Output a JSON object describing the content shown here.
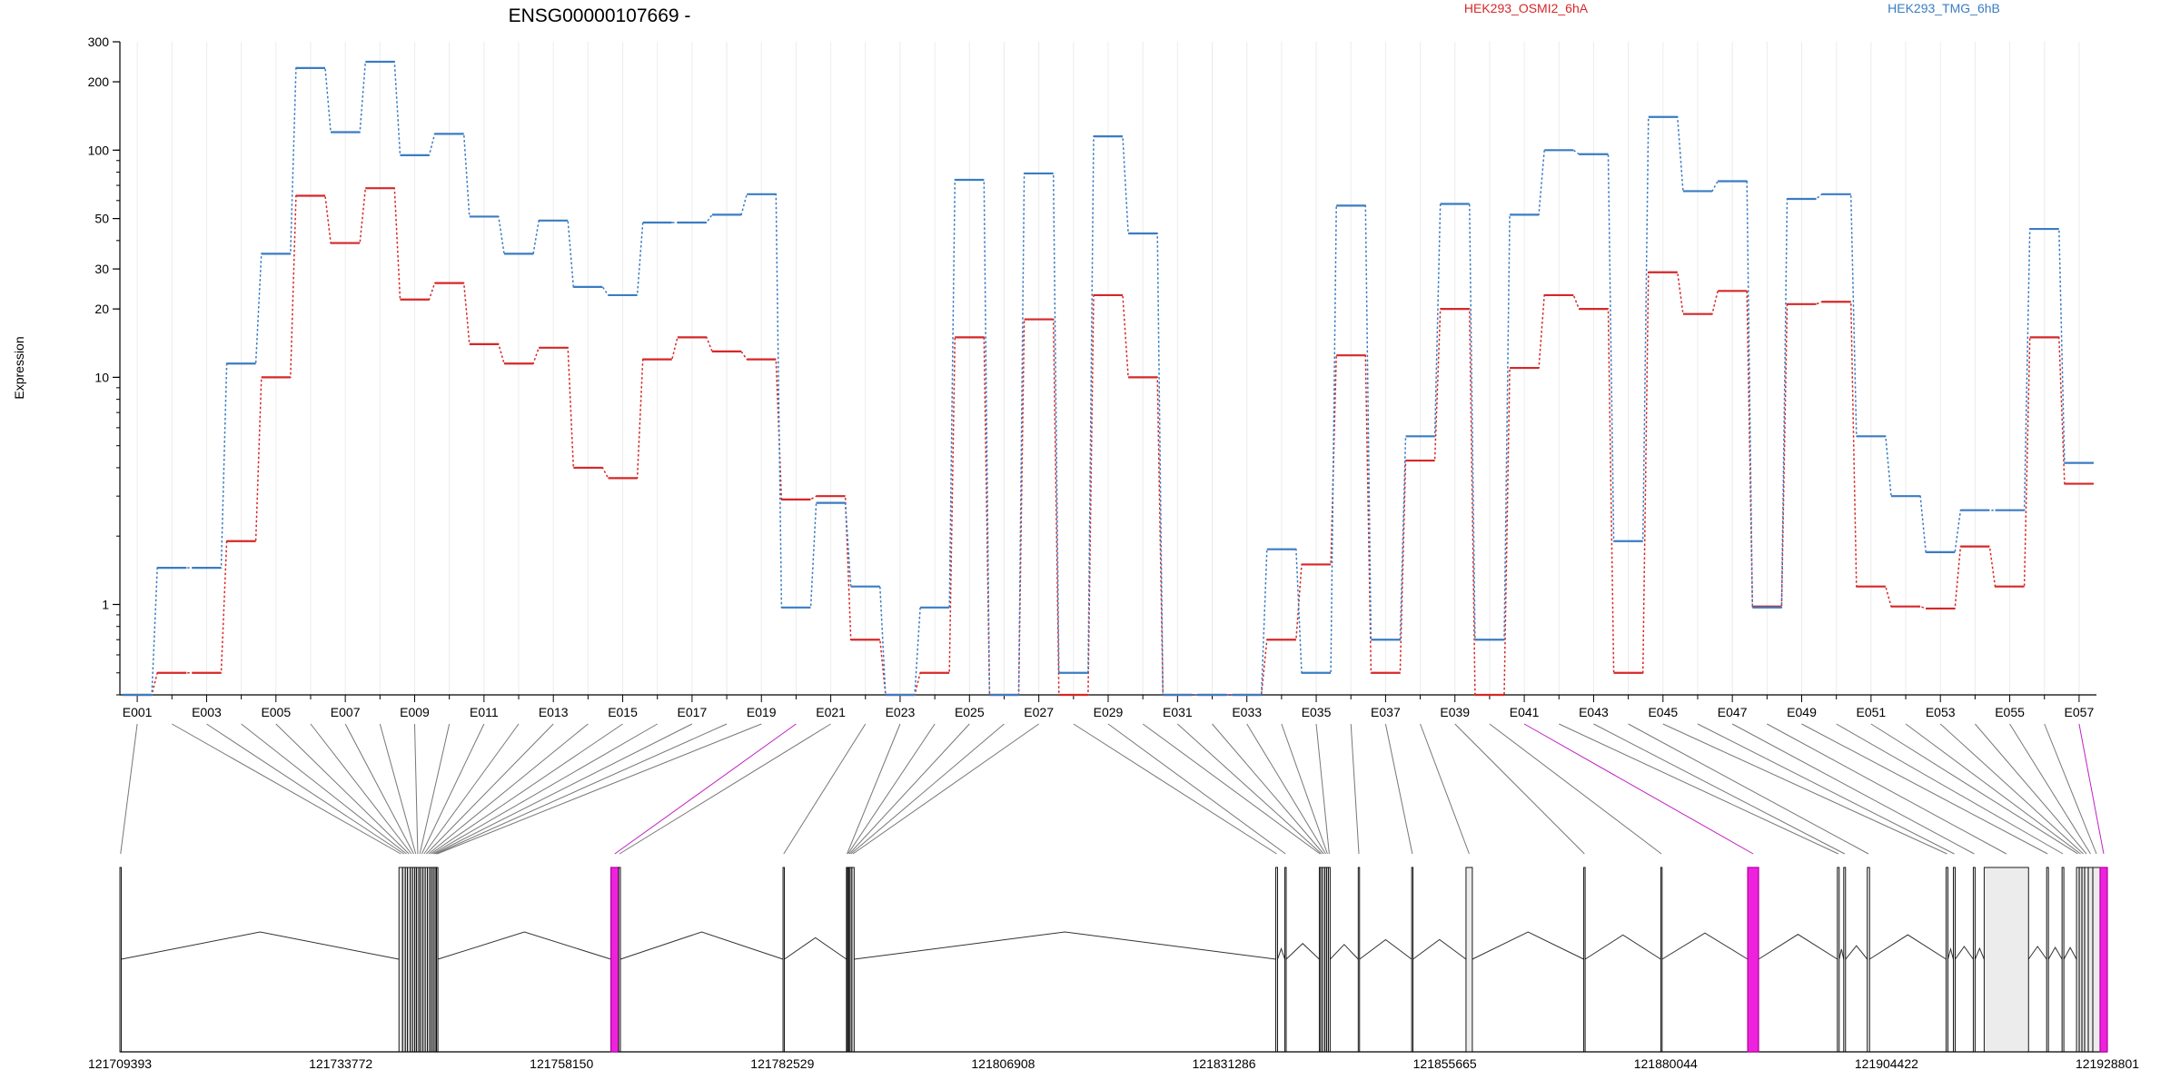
{
  "chart_data": {
    "type": "line",
    "title": "ENSG00000107669 -",
    "ylabel": "Expression",
    "xlabel": "",
    "y_scale": "log",
    "ylim": [
      0.4,
      300
    ],
    "y_ticks": [
      {
        "label": "300",
        "value": 300
      },
      {
        "label": "200",
        "value": 200
      },
      {
        "label": "100",
        "value": 100
      },
      {
        "label": "50",
        "value": 50
      },
      {
        "label": "30",
        "value": 30
      },
      {
        "label": "20",
        "value": 20
      },
      {
        "label": "10",
        "value": 10
      },
      {
        "label": "1",
        "value": 1
      }
    ],
    "grid": true,
    "legend_position": "top",
    "categories": [
      "E001",
      "E002",
      "E003",
      "E004",
      "E005",
      "E006",
      "E007",
      "E008",
      "E009",
      "E010",
      "E011",
      "E012",
      "E013",
      "E014",
      "E015",
      "E016",
      "E017",
      "E018",
      "E019",
      "E020",
      "E021",
      "E022",
      "E023",
      "E024",
      "E025",
      "E026",
      "E027",
      "E028",
      "E029",
      "E030",
      "E031",
      "E032",
      "E033",
      "E034",
      "E035",
      "E036",
      "E037",
      "E038",
      "E039",
      "E040",
      "E041",
      "E042",
      "E043",
      "E044",
      "E045",
      "E046",
      "E047",
      "E048",
      "E049",
      "E050",
      "E051",
      "E052",
      "E053",
      "E054",
      "E055",
      "E056",
      "E057"
    ],
    "x_tick_labels": [
      "E001",
      "E003",
      "E005",
      "E007",
      "E009",
      "E011",
      "E013",
      "E015",
      "E017",
      "E019",
      "E021",
      "E023",
      "E025",
      "E027",
      "E029",
      "E031",
      "E033",
      "E035",
      "E037",
      "E039",
      "E041",
      "E043",
      "E045",
      "E047",
      "E049",
      "E051",
      "E053",
      "E055",
      "E057"
    ],
    "series": [
      {
        "name": "HEK293_OSMI2_6hA",
        "color": "#d62728",
        "values": [
          0.4,
          0.5,
          0.5,
          1.9,
          10,
          63,
          39,
          68,
          22,
          26,
          14,
          11.5,
          13.5,
          4,
          3.6,
          12,
          15,
          13,
          12,
          2.9,
          3,
          0.7,
          0.4,
          0.5,
          15,
          0.4,
          18,
          0.4,
          23,
          10,
          0.4,
          0.4,
          0.4,
          0.7,
          1.5,
          12.5,
          0.5,
          4.3,
          20,
          0.4,
          11,
          23,
          20,
          0.5,
          29,
          19,
          24,
          0.98,
          21,
          21.5,
          1.2,
          0.98,
          0.96,
          1.8,
          1.2,
          15,
          3.4
        ]
      },
      {
        "name": "HEK293_TMG_6hB",
        "color": "#3a7cc2",
        "values": [
          0.4,
          1.45,
          1.45,
          11.5,
          35,
          230,
          120,
          245,
          95,
          118,
          51,
          35,
          49,
          25,
          23,
          48,
          48,
          52,
          64,
          0.97,
          2.8,
          1.2,
          0.4,
          0.97,
          74,
          0.4,
          79,
          0.5,
          115,
          43,
          0.4,
          0.4,
          0.4,
          1.75,
          0.5,
          57,
          0.7,
          5.5,
          58,
          0.7,
          52,
          100,
          96,
          1.9,
          140,
          66,
          73,
          0.97,
          61,
          64,
          5.5,
          3,
          1.7,
          2.6,
          2.6,
          45,
          4.2
        ]
      }
    ],
    "gene_model": {
      "coordinate_ticks": [
        "121709393",
        "121733772",
        "121758150",
        "121782529",
        "121806908",
        "121831286",
        "121855665",
        "121880044",
        "121904422",
        "121928801"
      ],
      "coord_min": 121709393,
      "coord_max": 121928801,
      "exons": [
        {
          "id": "E001",
          "start": 121709393,
          "end": 121709450,
          "highlight": false
        },
        {
          "id": "E002",
          "start": 121740200,
          "end": 121740600,
          "highlight": false
        },
        {
          "id": "E003",
          "start": 121740600,
          "end": 121740900,
          "highlight": false
        },
        {
          "id": "E004",
          "start": 121740900,
          "end": 121741150,
          "highlight": false
        },
        {
          "id": "E005",
          "start": 121741150,
          "end": 121741450,
          "highlight": false
        },
        {
          "id": "E006",
          "start": 121741450,
          "end": 121741700,
          "highlight": false
        },
        {
          "id": "E007",
          "start": 121741700,
          "end": 121741950,
          "highlight": false
        },
        {
          "id": "E008",
          "start": 121741950,
          "end": 121742150,
          "highlight": false
        },
        {
          "id": "E009",
          "start": 121742150,
          "end": 121742400,
          "highlight": false
        },
        {
          "id": "E010",
          "start": 121742400,
          "end": 121742600,
          "highlight": false
        },
        {
          "id": "E011",
          "start": 121742600,
          "end": 121742850,
          "highlight": false
        },
        {
          "id": "E012",
          "start": 121742850,
          "end": 121743100,
          "highlight": false
        },
        {
          "id": "E013",
          "start": 121743100,
          "end": 121743350,
          "highlight": false
        },
        {
          "id": "E014",
          "start": 121743350,
          "end": 121743600,
          "highlight": false
        },
        {
          "id": "E015",
          "start": 121743600,
          "end": 121743800,
          "highlight": false
        },
        {
          "id": "E016",
          "start": 121743800,
          "end": 121744000,
          "highlight": false
        },
        {
          "id": "E017",
          "start": 121744000,
          "end": 121744200,
          "highlight": false
        },
        {
          "id": "E018",
          "start": 121744200,
          "end": 121744350,
          "highlight": false
        },
        {
          "id": "E019",
          "start": 121744350,
          "end": 121744500,
          "highlight": false
        },
        {
          "id": "E020",
          "start": 121763600,
          "end": 121764450,
          "highlight": true
        },
        {
          "id": "E021",
          "start": 121764450,
          "end": 121764650,
          "highlight": false
        },
        {
          "id": "E022",
          "start": 121782600,
          "end": 121782700,
          "highlight": false
        },
        {
          "id": "E023",
          "start": 121789600,
          "end": 121789700,
          "highlight": false
        },
        {
          "id": "E024",
          "start": 121789700,
          "end": 121789850,
          "highlight": false
        },
        {
          "id": "E025",
          "start": 121789850,
          "end": 121790000,
          "highlight": false
        },
        {
          "id": "E026",
          "start": 121790000,
          "end": 121790200,
          "highlight": false
        },
        {
          "id": "E027",
          "start": 121790200,
          "end": 121790450,
          "highlight": false
        },
        {
          "id": "E028",
          "start": 121837000,
          "end": 121837200,
          "highlight": false
        },
        {
          "id": "E029",
          "start": 121838000,
          "end": 121838150,
          "highlight": false
        },
        {
          "id": "E030",
          "start": 121841800,
          "end": 121841950,
          "highlight": false
        },
        {
          "id": "E031",
          "start": 121841950,
          "end": 121842150,
          "highlight": false
        },
        {
          "id": "E032",
          "start": 121842150,
          "end": 121842400,
          "highlight": false
        },
        {
          "id": "E033",
          "start": 121842400,
          "end": 121842600,
          "highlight": false
        },
        {
          "id": "E034",
          "start": 121842600,
          "end": 121842800,
          "highlight": false
        },
        {
          "id": "E035",
          "start": 121842800,
          "end": 121843000,
          "highlight": false
        },
        {
          "id": "E036",
          "start": 121846100,
          "end": 121846200,
          "highlight": false
        },
        {
          "id": "E037",
          "start": 121852000,
          "end": 121852150,
          "highlight": false
        },
        {
          "id": "E038",
          "start": 121858000,
          "end": 121858700,
          "highlight": false
        },
        {
          "id": "E039",
          "start": 121871000,
          "end": 121871150,
          "highlight": false
        },
        {
          "id": "E040",
          "start": 121879500,
          "end": 121879650,
          "highlight": false
        },
        {
          "id": "E041",
          "start": 121889100,
          "end": 121890300,
          "highlight": true
        },
        {
          "id": "E042",
          "start": 121899000,
          "end": 121899200,
          "highlight": false
        },
        {
          "id": "E043",
          "start": 121899700,
          "end": 121899900,
          "highlight": false
        },
        {
          "id": "E044",
          "start": 121902300,
          "end": 121902550,
          "highlight": false
        },
        {
          "id": "E045",
          "start": 121911000,
          "end": 121911200,
          "highlight": false
        },
        {
          "id": "E046",
          "start": 121911800,
          "end": 121912000,
          "highlight": false
        },
        {
          "id": "E047",
          "start": 121914000,
          "end": 121914200,
          "highlight": false
        },
        {
          "id": "E048",
          "start": 121915200,
          "end": 121920100,
          "highlight": false
        },
        {
          "id": "E049",
          "start": 121922100,
          "end": 121922300,
          "highlight": false
        },
        {
          "id": "E050",
          "start": 121923800,
          "end": 121924000,
          "highlight": false
        },
        {
          "id": "E051",
          "start": 121925400,
          "end": 121925700,
          "highlight": false
        },
        {
          "id": "E052",
          "start": 121925700,
          "end": 121926000,
          "highlight": false
        },
        {
          "id": "E053",
          "start": 121926000,
          "end": 121926300,
          "highlight": false
        },
        {
          "id": "E054",
          "start": 121926300,
          "end": 121926700,
          "highlight": false
        },
        {
          "id": "E055",
          "start": 121926700,
          "end": 121927200,
          "highlight": false
        },
        {
          "id": "E056",
          "start": 121927200,
          "end": 121928000,
          "highlight": false
        },
        {
          "id": "E057",
          "start": 121928000,
          "end": 121928801,
          "highlight": true
        }
      ]
    }
  }
}
